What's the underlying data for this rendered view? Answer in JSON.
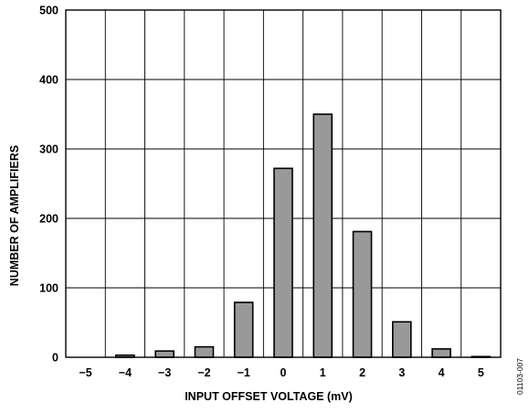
{
  "colors": {
    "bar_fill": "#999999",
    "bar_stroke": "#000000",
    "grid": "#000000",
    "background": "#ffffff"
  },
  "figure_id": "01103-007",
  "chart_data": {
    "type": "bar",
    "categories": [
      "−5",
      "−4",
      "−3",
      "−2",
      "−1",
      "0",
      "1",
      "2",
      "3",
      "4",
      "5"
    ],
    "values": [
      0,
      3,
      9,
      15,
      79,
      272,
      350,
      181,
      51,
      12,
      1
    ],
    "xlabel": "INPUT OFFSET VOLTAGE (mV)",
    "ylabel": "NUMBER OF AMPLIFIERS",
    "ylim": [
      0,
      500
    ],
    "yticks": [
      0,
      100,
      200,
      300,
      400,
      500
    ],
    "ytick_labels": [
      "0",
      "100",
      "200",
      "300",
      "400",
      "500"
    ],
    "grid": true,
    "legend": "none"
  }
}
